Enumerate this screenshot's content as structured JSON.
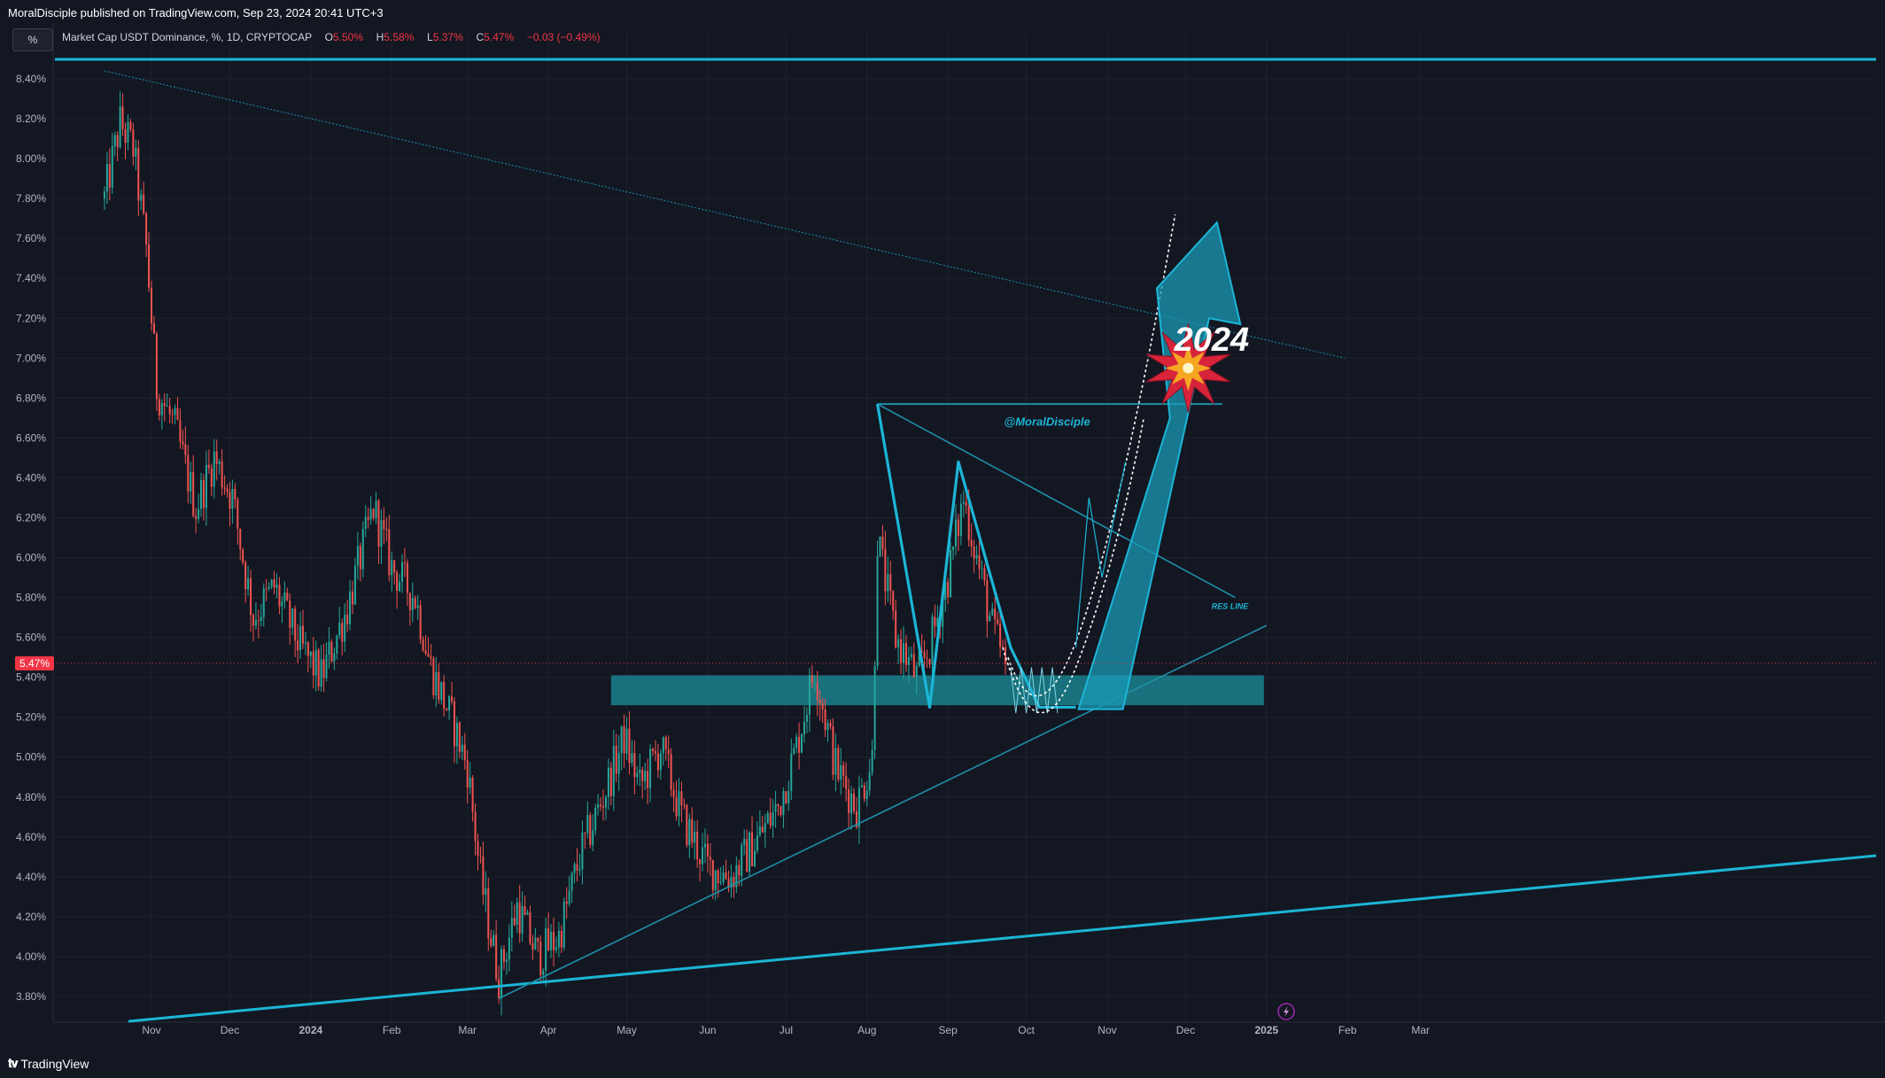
{
  "header": {
    "publisher": "MoralDisciple published on TradingView.com, Sep 23, 2024 20:41 UTC+3"
  },
  "toolbar": {
    "scale_button": "%"
  },
  "legend": {
    "symbol": "Market Cap USDT Dominance, %, 1D, CRYPTOCAP",
    "o_label": "O",
    "o_value": "5.50%",
    "h_label": "H",
    "h_value": "5.58%",
    "l_label": "L",
    "l_value": "5.37%",
    "c_label": "C",
    "c_value": "5.47%",
    "change": "−0.03 (−0.49%)"
  },
  "colors": {
    "background": "#131722",
    "up": "#26a69a",
    "down": "#ef5350",
    "drawing": "#1cb5d6",
    "price_label": "#f23645"
  },
  "footer": {
    "brand": "TradingView"
  },
  "chart_data": {
    "type": "candlestick",
    "title": "Market Cap USDT Dominance, %, 1D, CRYPTOCAP",
    "ylim": [
      3.75,
      8.5
    ],
    "y_ticks": [
      "8.40%",
      "8.20%",
      "8.00%",
      "7.80%",
      "7.60%",
      "7.40%",
      "7.20%",
      "7.00%",
      "6.80%",
      "6.60%",
      "6.40%",
      "6.20%",
      "6.00%",
      "5.80%",
      "5.60%",
      "5.40%",
      "5.20%",
      "5.00%",
      "4.80%",
      "4.60%",
      "4.40%",
      "4.20%",
      "4.00%",
      "3.80%"
    ],
    "x_ticks": [
      "Nov",
      "Dec",
      "2024",
      "Feb",
      "Mar",
      "Apr",
      "May",
      "Jun",
      "Jul",
      "Aug",
      "Sep",
      "Oct",
      "Nov",
      "Dec",
      "2025",
      "Feb",
      "Mar"
    ],
    "last_price_label": "5.47%",
    "last_price": 5.47,
    "grid": true,
    "path_anchors": [
      [
        "2023-10-14",
        7.8
      ],
      [
        "2023-10-20",
        8.18
      ],
      [
        "2023-10-25",
        8.05
      ],
      [
        "2023-10-30",
        7.55
      ],
      [
        "2023-11-03",
        6.85
      ],
      [
        "2023-11-10",
        6.65
      ],
      [
        "2023-11-18",
        6.25
      ],
      [
        "2023-11-25",
        6.5
      ],
      [
        "2023-12-02",
        6.3
      ],
      [
        "2023-12-10",
        5.7
      ],
      [
        "2023-12-18",
        5.85
      ],
      [
        "2023-12-28",
        5.55
      ],
      [
        "2024-01-05",
        5.4
      ],
      [
        "2024-01-15",
        5.75
      ],
      [
        "2024-01-25",
        6.25
      ],
      [
        "2024-02-01",
        5.95
      ],
      [
        "2024-02-10",
        5.8
      ],
      [
        "2024-02-16",
        5.45
      ],
      [
        "2024-02-25",
        5.15
      ],
      [
        "2024-03-01",
        4.95
      ],
      [
        "2024-03-06",
        4.4
      ],
      [
        "2024-03-10",
        4.1
      ],
      [
        "2024-03-13",
        3.9
      ],
      [
        "2024-03-20",
        4.25
      ],
      [
        "2024-03-28",
        4.0
      ],
      [
        "2024-04-05",
        4.1
      ],
      [
        "2024-04-13",
        4.5
      ],
      [
        "2024-04-22",
        4.8
      ],
      [
        "2024-04-30",
        5.1
      ],
      [
        "2024-05-06",
        4.85
      ],
      [
        "2024-05-14",
        5.05
      ],
      [
        "2024-05-22",
        4.7
      ],
      [
        "2024-06-01",
        4.45
      ],
      [
        "2024-06-10",
        4.4
      ],
      [
        "2024-06-18",
        4.55
      ],
      [
        "2024-06-28",
        4.75
      ],
      [
        "2024-07-05",
        5.05
      ],
      [
        "2024-07-12",
        5.45
      ],
      [
        "2024-07-20",
        4.95
      ],
      [
        "2024-07-28",
        4.75
      ],
      [
        "2024-08-03",
        5.0
      ],
      [
        "2024-08-05",
        6.1
      ],
      [
        "2024-08-12",
        5.6
      ],
      [
        "2024-08-20",
        5.4
      ],
      [
        "2024-08-25",
        5.55
      ],
      [
        "2024-09-01",
        5.9
      ],
      [
        "2024-09-07",
        6.3
      ],
      [
        "2024-09-12",
        6.0
      ],
      [
        "2024-09-18",
        5.65
      ],
      [
        "2024-09-23",
        5.47
      ]
    ],
    "annotations": {
      "year_label": "2024",
      "watermark": "@MoralDisciple",
      "res_line_label": "RES LINE"
    }
  }
}
